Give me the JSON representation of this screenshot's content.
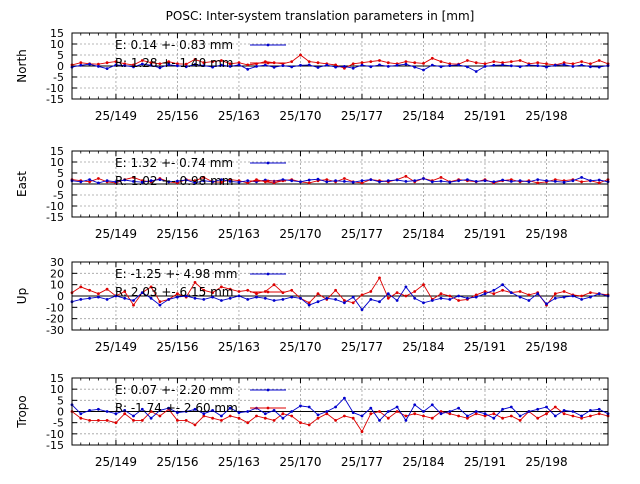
{
  "figure": {
    "title": "POSC: Inter-system translation parameters in [mm]"
  },
  "colors": {
    "E": "#0000cc",
    "R": "#dd0000",
    "grid": "#a0a0a0"
  },
  "chart_data": [
    {
      "type": "line",
      "ylabel": "North",
      "ylim": [
        -15,
        15
      ],
      "yticks": [
        15,
        10,
        5,
        0,
        -5,
        -10,
        -15
      ],
      "xticks": [
        "25/149",
        "25/156",
        "25/163",
        "25/170",
        "25/177",
        "25/184",
        "25/191",
        "25/198"
      ],
      "xlim": [
        144,
        205
      ],
      "grid": true,
      "legend_position": "top-left",
      "series": [
        {
          "name": "E",
          "legend_text": "E:   0.14 +- 0.83 mm",
          "x": [
            144,
            145,
            146,
            147,
            148,
            149,
            150,
            151,
            152,
            153,
            154,
            155,
            156,
            157,
            158,
            159,
            160,
            161,
            162,
            163,
            164,
            165,
            166,
            167,
            168,
            169,
            170,
            171,
            172,
            173,
            174,
            175,
            176,
            177,
            178,
            179,
            180,
            181,
            182,
            183,
            184,
            185,
            186,
            187,
            188,
            189,
            190,
            191,
            192,
            193,
            194,
            195,
            196,
            197,
            198,
            199,
            200,
            201,
            202,
            203,
            204,
            205
          ],
          "y": [
            -0.5,
            0.3,
            0.8,
            -0.2,
            -1.2,
            0.5,
            0.2,
            -0.4,
            0.9,
            0.3,
            -0.8,
            0.6,
            0.1,
            -0.3,
            0.7,
            0.2,
            -0.5,
            0.4,
            -0.2,
            0.5,
            -1.5,
            -0.2,
            0.4,
            -0.6,
            0.2,
            -0.4,
            0.3,
            0.5,
            -0.7,
            0.4,
            -0.5,
            -0.2,
            -1,
            0.4,
            -0.3,
            0.5,
            -0.2,
            0.3,
            0.8,
            -0.5,
            -1.8,
            0.4,
            -0.3,
            0.2,
            0.5,
            -0.4,
            -2.5,
            -0.2,
            0.3,
            0.5,
            0.1,
            -0.3,
            0.4,
            0.2,
            -0.5,
            0.3,
            0.6,
            -0.2,
            0.4,
            -0.3,
            -0.5,
            0.2
          ]
        },
        {
          "name": "R",
          "legend_text": "R:   1.28 +- 1.40 mm",
          "x": [
            144,
            145,
            146,
            147,
            148,
            149,
            150,
            151,
            152,
            153,
            154,
            155,
            156,
            157,
            158,
            159,
            160,
            161,
            162,
            163,
            164,
            165,
            166,
            167,
            168,
            169,
            170,
            171,
            172,
            173,
            174,
            175,
            176,
            177,
            178,
            179,
            180,
            181,
            182,
            183,
            184,
            185,
            186,
            187,
            188,
            189,
            190,
            191,
            192,
            193,
            194,
            195,
            196,
            197,
            198,
            199,
            200,
            201,
            202,
            203,
            204,
            205
          ],
          "y": [
            0.5,
            1.5,
            1,
            0.8,
            1.5,
            2,
            1,
            0.5,
            2.5,
            1.5,
            1,
            2,
            1,
            0.8,
            3,
            1.5,
            2,
            2.5,
            1,
            1.5,
            0.5,
            1,
            2,
            1.5,
            1,
            2,
            5,
            2,
            1.5,
            1,
            0.5,
            -1,
            1,
            1.5,
            2,
            2.5,
            1.5,
            1,
            2,
            1.5,
            1.2,
            3.5,
            2,
            1,
            0.8,
            2.5,
            1.5,
            1,
            2,
            1.5,
            2,
            2.5,
            1,
            1.5,
            1,
            0.5,
            1.5,
            1,
            2,
            1,
            2.5,
            1
          ]
        }
      ]
    },
    {
      "type": "line",
      "ylabel": "East",
      "ylim": [
        -15,
        15
      ],
      "yticks": [
        15,
        10,
        5,
        0,
        -5,
        -10,
        -15
      ],
      "xticks": [
        "25/149",
        "25/156",
        "25/163",
        "25/170",
        "25/177",
        "25/184",
        "25/191",
        "25/198"
      ],
      "xlim": [
        144,
        205
      ],
      "grid": true,
      "legend_position": "top-left",
      "series": [
        {
          "name": "E",
          "legend_text": "E:   1.32 +- 0.74 mm",
          "x": [
            144,
            145,
            146,
            147,
            148,
            149,
            150,
            151,
            152,
            153,
            154,
            155,
            156,
            157,
            158,
            159,
            160,
            161,
            162,
            163,
            164,
            165,
            166,
            167,
            168,
            169,
            170,
            171,
            172,
            173,
            174,
            175,
            176,
            177,
            178,
            179,
            180,
            181,
            182,
            183,
            184,
            185,
            186,
            187,
            188,
            189,
            190,
            191,
            192,
            193,
            194,
            195,
            196,
            197,
            198,
            199,
            200,
            201,
            202,
            203,
            204,
            205
          ],
          "y": [
            1.5,
            1,
            2,
            0.5,
            1.5,
            1,
            1.8,
            1.2,
            0.8,
            1.5,
            2,
            1,
            1.3,
            1.8,
            0.5,
            1.5,
            1,
            2,
            1.2,
            0.8,
            1.5,
            1,
            1.8,
            1.3,
            2,
            1.5,
            1,
            1.8,
            2.2,
            1,
            1.5,
            1.2,
            0.8,
            1.5,
            2,
            1,
            1.5,
            1.8,
            1.2,
            1.5,
            2.5,
            1,
            1.3,
            0.8,
            1.5,
            2,
            1.2,
            1.5,
            1,
            1.8,
            1.2,
            1.5,
            1,
            2,
            1.5,
            1.2,
            0.8,
            1.5,
            3,
            1.5,
            1.8,
            1
          ]
        },
        {
          "name": "R",
          "legend_text": "R:   1.02 +- 0.98 mm",
          "x": [
            144,
            145,
            146,
            147,
            148,
            149,
            150,
            151,
            152,
            153,
            154,
            155,
            156,
            157,
            158,
            159,
            160,
            161,
            162,
            163,
            164,
            165,
            166,
            167,
            168,
            169,
            170,
            171,
            172,
            173,
            174,
            175,
            176,
            177,
            178,
            179,
            180,
            181,
            182,
            183,
            184,
            185,
            186,
            187,
            188,
            189,
            190,
            191,
            192,
            193,
            194,
            195,
            196,
            197,
            198,
            199,
            200,
            201,
            202,
            203,
            204,
            205
          ],
          "y": [
            2,
            1.5,
            1,
            2.5,
            1,
            0.5,
            2,
            3,
            1.5,
            1,
            2.5,
            1,
            0.5,
            2,
            1.5,
            3,
            1,
            0.8,
            2,
            1.5,
            0.5,
            2,
            1,
            0.5,
            1.5,
            2,
            1,
            0.5,
            1.5,
            2,
            1,
            2.5,
            1,
            0.5,
            2,
            1.5,
            1,
            2,
            3.5,
            1,
            2.5,
            1.5,
            3,
            1,
            2,
            1.5,
            1,
            2,
            0.5,
            1.5,
            2,
            1,
            1.5,
            0.5,
            1,
            2,
            1.5,
            2,
            1,
            1.5,
            0.5,
            2
          ]
        }
      ]
    },
    {
      "type": "line",
      "ylabel": "Up",
      "ylim": [
        -30,
        30
      ],
      "yticks": [
        30,
        20,
        10,
        0,
        -10,
        -20,
        -30
      ],
      "xticks": [
        "25/149",
        "25/156",
        "25/163",
        "25/170",
        "25/177",
        "25/184",
        "25/191",
        "25/198"
      ],
      "xlim": [
        144,
        205
      ],
      "grid": true,
      "legend_position": "top-left",
      "series": [
        {
          "name": "E",
          "legend_text": "E:  -1.25 +- 4.98 mm",
          "x": [
            144,
            145,
            146,
            147,
            148,
            149,
            150,
            151,
            152,
            153,
            154,
            155,
            156,
            157,
            158,
            159,
            160,
            161,
            162,
            163,
            164,
            165,
            166,
            167,
            168,
            169,
            170,
            171,
            172,
            173,
            174,
            175,
            176,
            177,
            178,
            179,
            180,
            181,
            182,
            183,
            184,
            185,
            186,
            187,
            188,
            189,
            190,
            191,
            192,
            193,
            194,
            195,
            196,
            197,
            198,
            199,
            200,
            201,
            202,
            203,
            204,
            205
          ],
          "y": [
            -5,
            -3,
            -2,
            -1,
            -3,
            0,
            -2,
            -4,
            3,
            -2,
            -8,
            -3,
            -1,
            0,
            -2,
            -3,
            -1,
            -4,
            -2,
            0,
            -3,
            -1,
            -2,
            -4,
            -3,
            -1,
            -2,
            -8,
            -5,
            -2,
            -3,
            -6,
            -1,
            -12,
            -3,
            -5,
            2,
            -4,
            8,
            -2,
            -6,
            -4,
            -2,
            -3,
            0,
            -2,
            -1,
            2,
            5,
            10,
            3,
            -1,
            -4,
            2,
            -7,
            -2,
            -1,
            0,
            -3,
            -1,
            2,
            0
          ]
        },
        {
          "name": "R",
          "legend_text": "R:   2.03 +- 6.15 mm",
          "x": [
            144,
            145,
            146,
            147,
            148,
            149,
            150,
            151,
            152,
            153,
            154,
            155,
            156,
            157,
            158,
            159,
            160,
            161,
            162,
            163,
            164,
            165,
            166,
            167,
            168,
            169,
            170,
            171,
            172,
            173,
            174,
            175,
            176,
            177,
            178,
            179,
            180,
            181,
            182,
            183,
            184,
            185,
            186,
            187,
            188,
            189,
            190,
            191,
            192,
            193,
            194,
            195,
            196,
            197,
            198,
            199,
            200,
            201,
            202,
            203,
            204,
            205
          ],
          "y": [
            3,
            8,
            5,
            2,
            6,
            0,
            4,
            -8,
            3,
            8,
            -5,
            -3,
            2,
            -1,
            12,
            5,
            3,
            8,
            6,
            4,
            5,
            2,
            4,
            10,
            3,
            5,
            -2,
            -6,
            2,
            -3,
            5,
            -4,
            -6,
            1,
            4,
            16,
            -2,
            3,
            0,
            4,
            10,
            -3,
            2,
            0,
            -4,
            -3,
            1,
            4,
            2,
            5,
            3,
            4,
            1,
            3,
            -8,
            2,
            4,
            1,
            0,
            3,
            2,
            1
          ]
        }
      ]
    },
    {
      "type": "line",
      "ylabel": "Tropo",
      "ylim": [
        -15,
        15
      ],
      "yticks": [
        15,
        10,
        5,
        0,
        -5,
        -10,
        -15
      ],
      "xticks": [
        "25/149",
        "25/156",
        "25/163",
        "25/170",
        "25/177",
        "25/184",
        "25/191",
        "25/198"
      ],
      "xlim": [
        144,
        205
      ],
      "grid": true,
      "legend_position": "top-left",
      "series": [
        {
          "name": "E",
          "legend_text": "E:   0.07 +- 2.20 mm",
          "x": [
            144,
            145,
            146,
            147,
            148,
            149,
            150,
            151,
            152,
            153,
            154,
            155,
            156,
            157,
            158,
            159,
            160,
            161,
            162,
            163,
            164,
            165,
            166,
            167,
            168,
            169,
            170,
            171,
            172,
            173,
            174,
            175,
            176,
            177,
            178,
            179,
            180,
            181,
            182,
            183,
            184,
            185,
            186,
            187,
            188,
            189,
            190,
            191,
            192,
            193,
            194,
            195,
            196,
            197,
            198,
            199,
            200,
            201,
            202,
            203,
            204,
            205
          ],
          "y": [
            3,
            -1,
            0.5,
            1,
            0,
            -1,
            0.5,
            -2,
            1,
            -3,
            0.5,
            1.5,
            -0.5,
            0,
            1,
            -1,
            0.5,
            -2,
            1.5,
            -0.5,
            0,
            1.5,
            -1,
            0.5,
            -3,
            0,
            2.5,
            2,
            -1.5,
            0,
            2,
            6,
            -0.5,
            -2,
            1.5,
            -4,
            0,
            2,
            -4,
            3,
            0,
            3,
            -1,
            0,
            1.5,
            -2,
            0,
            -1,
            -3,
            1,
            2,
            -2,
            0,
            1,
            2,
            -2,
            0.5,
            0,
            -2,
            0.5,
            1,
            -1
          ]
        },
        {
          "name": "R",
          "legend_text": "R:  -1.74 +- 2.60 mm",
          "x": [
            144,
            145,
            146,
            147,
            148,
            149,
            150,
            151,
            152,
            153,
            154,
            155,
            156,
            157,
            158,
            159,
            160,
            161,
            162,
            163,
            164,
            165,
            166,
            167,
            168,
            169,
            170,
            171,
            172,
            173,
            174,
            175,
            176,
            177,
            178,
            179,
            180,
            181,
            182,
            183,
            184,
            185,
            186,
            187,
            188,
            189,
            190,
            191,
            192,
            193,
            194,
            195,
            196,
            197,
            198,
            199,
            200,
            201,
            202,
            203,
            204,
            205
          ],
          "y": [
            0,
            -3,
            -4,
            -4,
            -4,
            -5,
            -1,
            -4,
            -4,
            0,
            -2,
            1,
            -4,
            -4,
            -6,
            -2,
            -3,
            -4,
            -2,
            -3,
            -5,
            -2,
            -3,
            -4,
            -1,
            -2,
            -5,
            -6,
            -3,
            -1,
            -4,
            -2,
            -3,
            -9,
            -1,
            0,
            -3,
            0,
            -2,
            -1,
            -2,
            -3,
            0,
            -1,
            -2,
            -3,
            -1,
            -2,
            -1,
            -3,
            -2,
            -4,
            0,
            -3,
            -1,
            2,
            -1,
            -2,
            -3,
            -2,
            -1,
            -2
          ]
        }
      ]
    }
  ]
}
